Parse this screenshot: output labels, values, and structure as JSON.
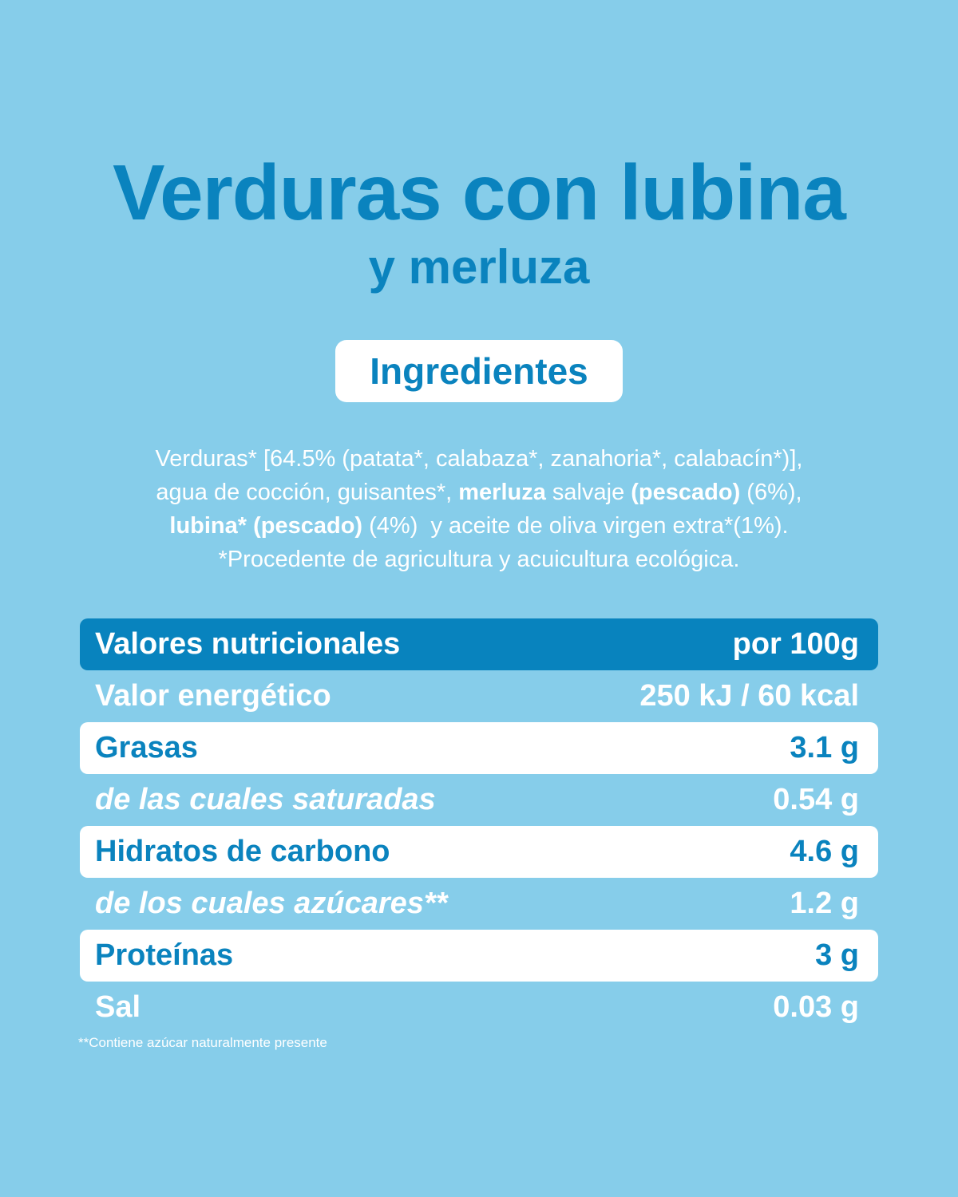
{
  "title": "Verduras con lubina",
  "subtitle": "y merluza",
  "ingredients_heading": "Ingredientes",
  "ingredients": [
    [
      {
        "text": "Verduras* [64.5% (patata*, calabaza*, zanahoria*, calabacín*)],",
        "bold": false
      }
    ],
    [
      {
        "text": "agua de cocción, guisantes*, ",
        "bold": false
      },
      {
        "text": "merluza",
        "bold": true
      },
      {
        "text": " salvaje ",
        "bold": false
      },
      {
        "text": "(pescado)",
        "bold": true
      },
      {
        "text": " (6%),",
        "bold": false
      }
    ],
    [
      {
        "text": "lubina* (pescado)",
        "bold": true
      },
      {
        "text": " (4%)  y aceite de oliva virgen extra*(1%).",
        "bold": false
      }
    ],
    [
      {
        "text": "*Procedente de agricultura y acuicultura ecológica.",
        "bold": false
      }
    ]
  ],
  "table": {
    "header": [
      "Valores nutricionales",
      "por 100g"
    ],
    "rows": [
      {
        "label": "Valor energético",
        "value": "250 kJ / 60 kcal",
        "italic": false
      },
      {
        "label": "Grasas",
        "value": "3.1 g",
        "italic": false
      },
      {
        "label": "de las cuales saturadas",
        "value": "0.54 g",
        "italic": true
      },
      {
        "label": "Hidratos de carbono",
        "value": "4.6 g",
        "italic": false
      },
      {
        "label": "de los cuales azúcares**",
        "value": "1.2 g",
        "italic": true
      },
      {
        "label": "Proteínas",
        "value": "3 g",
        "italic": false
      },
      {
        "label": "Sal",
        "value": "0.03 g",
        "italic": false
      }
    ]
  },
  "footnote": "**Contiene azúcar naturalmente presente"
}
